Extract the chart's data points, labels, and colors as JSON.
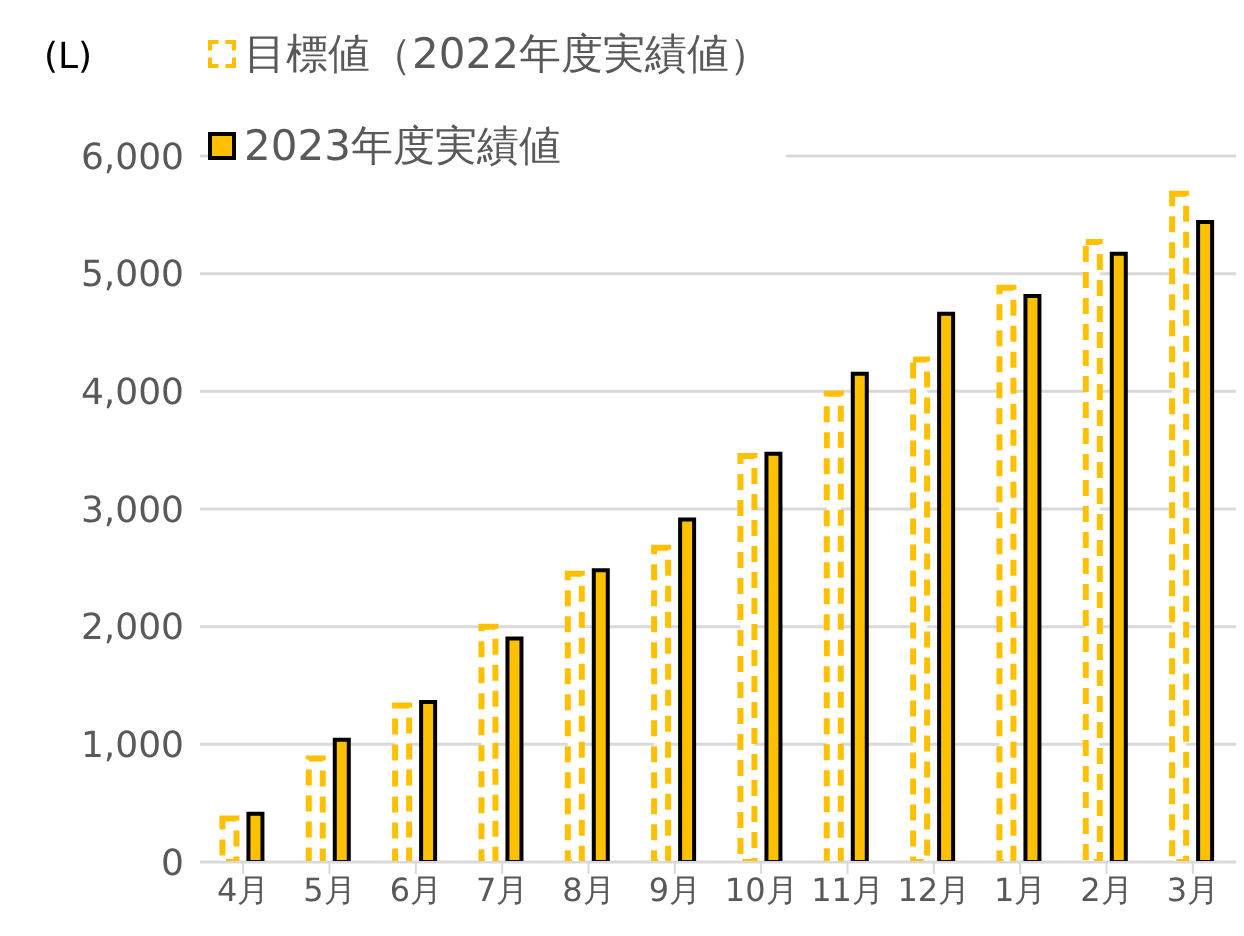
{
  "chart_data": {
    "type": "bar",
    "ylabel": "(L)",
    "categories": [
      "4月",
      "5月",
      "6月",
      "7月",
      "8月",
      "9月",
      "10月",
      "11月",
      "12月",
      "1月",
      "2月",
      "3月"
    ],
    "series": [
      {
        "name": "目標値（2022年度実績値）",
        "color": "#ffc000",
        "line_style": "dashed",
        "values": [
          370,
          880,
          1330,
          2000,
          2450,
          2670,
          3450,
          3980,
          4270,
          4880,
          5270,
          5680
        ]
      },
      {
        "name": "2023年度実績値",
        "color": "#ffc000",
        "line_style": "solid",
        "values": [
          410,
          1040,
          1360,
          1900,
          2480,
          2910,
          3470,
          4150,
          4660,
          4810,
          5170,
          5440
        ]
      }
    ],
    "ylim": [
      0,
      6000
    ],
    "yticks": [
      0,
      {
        "value": 1000,
        "label": "1,000"
      },
      {
        "value": 2000,
        "label": "2,000"
      },
      {
        "value": 3000,
        "label": "3,000"
      },
      {
        "value": 4000,
        "label": "4,000"
      },
      {
        "value": 5000,
        "label": "5,000"
      },
      {
        "value": 6000,
        "label": "6,000"
      }
    ],
    "grid": "y",
    "legend": "top left"
  }
}
